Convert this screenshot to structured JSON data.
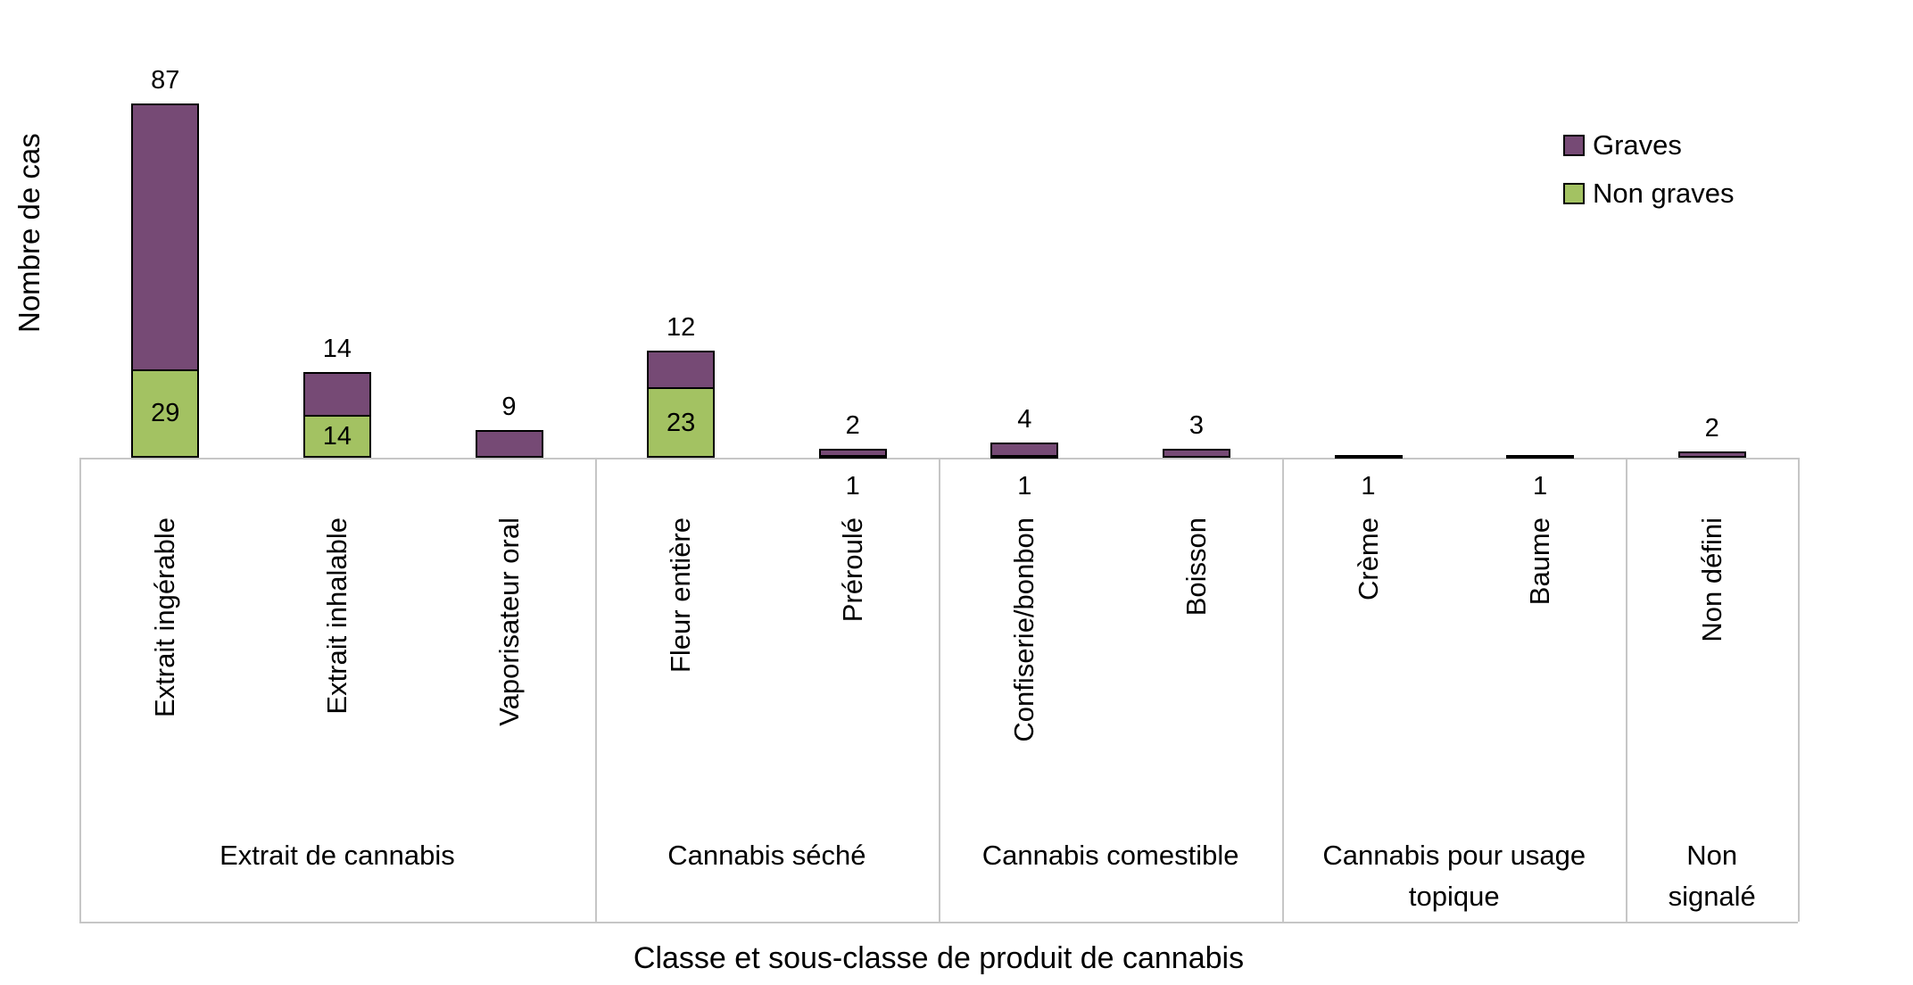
{
  "chart_data": {
    "type": "bar",
    "stacked": true,
    "title": "",
    "xlabel": "Classe et sous-classe de produit de cannabis",
    "ylabel": "Nombre de cas",
    "y_axis_ticks_visible": false,
    "legend_position": "top-right",
    "legend": [
      {
        "name": "Graves",
        "color": "#764a75"
      },
      {
        "name": "Non graves",
        "color": "#a3c262"
      }
    ],
    "bars": [
      {
        "group": "Extrait de cannabis",
        "label": "Extrait ingérable",
        "graves": 87,
        "non_graves": 29
      },
      {
        "group": "Extrait de cannabis",
        "label": "Extrait inhalable",
        "graves": 14,
        "non_graves": 14
      },
      {
        "group": "Extrait de cannabis",
        "label": "Vaporisateur oral",
        "graves": 9,
        "non_graves": 0
      },
      {
        "group": "Cannabis séché",
        "label": "Fleur entière",
        "graves": 12,
        "non_graves": 23
      },
      {
        "group": "Cannabis séché",
        "label": "Préroulé",
        "graves": 2,
        "non_graves": 1
      },
      {
        "group": "Cannabis comestible",
        "label": "Confiserie/bonbon",
        "graves": 4,
        "non_graves": 1
      },
      {
        "group": "Cannabis comestible",
        "label": "Boisson",
        "graves": 3,
        "non_graves": 0
      },
      {
        "group": "Cannabis pour usage topique",
        "label": "Crème",
        "graves": 0,
        "non_graves": 1
      },
      {
        "group": "Cannabis pour usage topique",
        "label": "Baume",
        "graves": 0,
        "non_graves": 1
      },
      {
        "group": "Non signalé",
        "label": "Non défini",
        "graves": 2,
        "non_graves": 0
      }
    ]
  }
}
